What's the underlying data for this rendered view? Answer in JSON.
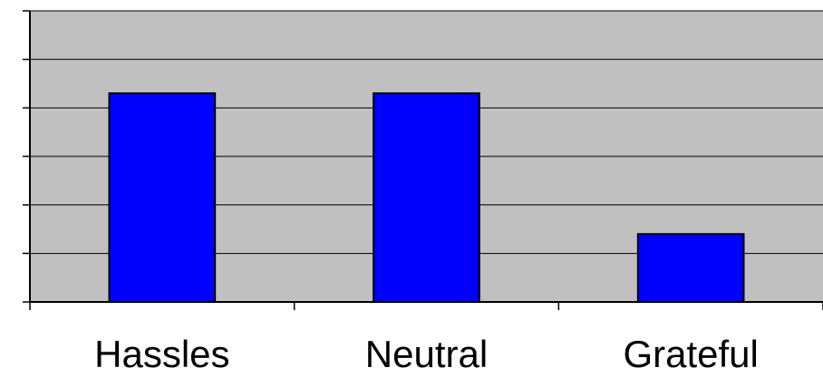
{
  "chart_data": {
    "type": "bar",
    "categories": [
      "Hassles",
      "Neutral",
      "Grateful"
    ],
    "values": [
      4.3,
      4.3,
      1.4
    ],
    "ylim": [
      0,
      6
    ],
    "grid": true,
    "title": "",
    "xlabel": "",
    "ylabel": "",
    "colors": {
      "bar_fill": "#0000ff",
      "bar_stroke": "#000000",
      "plot_background": "#c0c0c0",
      "gridline": "#000000"
    }
  }
}
